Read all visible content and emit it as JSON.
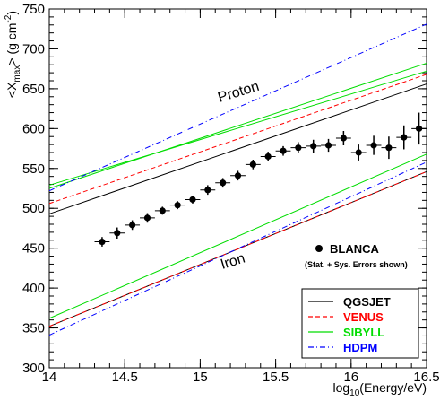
{
  "chart_data": {
    "type": "scatter",
    "xlabel_main": "log",
    "xlabel_sub": "10",
    "xlabel_rest": "(Energy/eV)",
    "ylabel_open": "<X",
    "ylabel_sub": "max",
    "ylabel_close": ">  (g cm",
    "ylabel_sup": "-2",
    "ylabel_end": ")",
    "xlim": [
      14,
      16.5
    ],
    "ylim": [
      300,
      750
    ],
    "x_ticks": [
      14,
      14.5,
      15,
      15.5,
      16,
      16.5
    ],
    "x_tick_labels": [
      "14",
      "14.5",
      "15",
      "15.5",
      "16",
      "16.5"
    ],
    "y_ticks": [
      300,
      350,
      400,
      450,
      500,
      550,
      600,
      650,
      700,
      750
    ],
    "y_tick_labels": [
      "300",
      "350",
      "400",
      "450",
      "500",
      "550",
      "600",
      "650",
      "700",
      "750"
    ],
    "annotations": {
      "proton": "Proton",
      "iron": "Iron",
      "data_label": "BLANCA",
      "data_note": "(Stat. + Sys. Errors shown)"
    },
    "series": [
      {
        "name": "QGSJET",
        "color": "#000000",
        "dash": "solid",
        "proton": [
          [
            14,
            493
          ],
          [
            16.5,
            656
          ]
        ],
        "iron": [
          [
            14,
            352
          ],
          [
            16.5,
            546
          ]
        ]
      },
      {
        "name": "VENUS",
        "color": "#ff0000",
        "dash": "dashed",
        "proton": [
          [
            14,
            506
          ],
          [
            16.5,
            668
          ]
        ],
        "iron": [
          [
            14,
            352
          ],
          [
            16.5,
            546
          ]
        ]
      },
      {
        "name": "SIBYLL",
        "color": "#00dd00",
        "dash": "solid",
        "proton": [
          [
            14,
            525
          ],
          [
            16.5,
            682
          ]
        ],
        "proton_alt": [
          [
            14,
            529
          ],
          [
            16.5,
            672
          ]
        ],
        "iron": [
          [
            14,
            362
          ],
          [
            16.5,
            568
          ]
        ]
      },
      {
        "name": "HDPM",
        "color": "#0000ff",
        "dash": "dashdot",
        "proton": [
          [
            14,
            522
          ],
          [
            16.5,
            731
          ]
        ],
        "iron": [
          [
            14,
            341
          ],
          [
            16.5,
            558
          ]
        ]
      }
    ],
    "points": [
      {
        "x": 14.35,
        "y": 458,
        "err": 6
      },
      {
        "x": 14.45,
        "y": 469,
        "err": 7
      },
      {
        "x": 14.55,
        "y": 479,
        "err": 6
      },
      {
        "x": 14.65,
        "y": 488,
        "err": 6
      },
      {
        "x": 14.75,
        "y": 497,
        "err": 5
      },
      {
        "x": 14.85,
        "y": 504,
        "err": 5
      },
      {
        "x": 14.95,
        "y": 511,
        "err": 5
      },
      {
        "x": 15.05,
        "y": 523,
        "err": 6
      },
      {
        "x": 15.15,
        "y": 532,
        "err": 6
      },
      {
        "x": 15.25,
        "y": 541,
        "err": 6
      },
      {
        "x": 15.35,
        "y": 555,
        "err": 6
      },
      {
        "x": 15.45,
        "y": 565,
        "err": 6
      },
      {
        "x": 15.55,
        "y": 572,
        "err": 6
      },
      {
        "x": 15.65,
        "y": 576,
        "err": 7
      },
      {
        "x": 15.75,
        "y": 578,
        "err": 8
      },
      {
        "x": 15.85,
        "y": 579,
        "err": 8
      },
      {
        "x": 15.95,
        "y": 588,
        "err": 9
      },
      {
        "x": 16.05,
        "y": 570,
        "err": 10
      },
      {
        "x": 16.15,
        "y": 579,
        "err": 12
      },
      {
        "x": 16.25,
        "y": 576,
        "err": 14
      },
      {
        "x": 16.35,
        "y": 589,
        "err": 15
      },
      {
        "x": 16.45,
        "y": 600,
        "err": 20
      }
    ]
  }
}
